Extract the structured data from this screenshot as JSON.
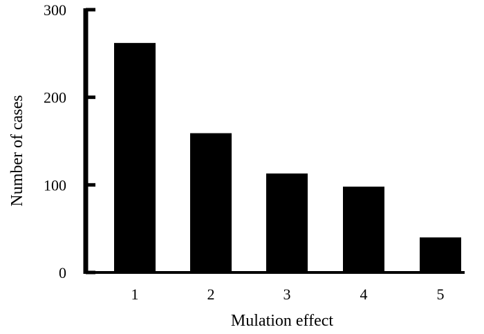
{
  "chart_data": {
    "type": "bar",
    "categories": [
      "1",
      "2",
      "3",
      "4",
      "5"
    ],
    "values": [
      262,
      159,
      113,
      98,
      40
    ],
    "title": "",
    "xlabel": "Mulation effect",
    "ylabel": "Number of cases",
    "ylim": [
      0,
      300
    ],
    "yticks": [
      "0",
      "100",
      "200",
      "300"
    ],
    "grid": false,
    "bar_color": "#000000"
  }
}
